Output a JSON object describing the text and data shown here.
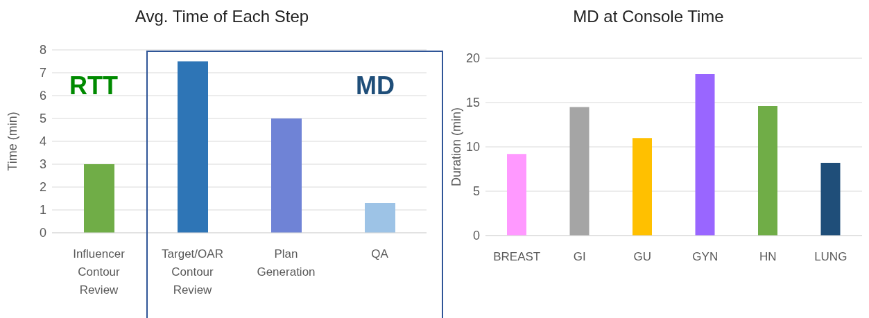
{
  "chart_data": [
    {
      "type": "bar",
      "title": "Avg. Time of Each Step",
      "ylabel": "Time (min)",
      "categories": [
        "Influencer Contour Review",
        "Target/OAR Contour Review",
        "Plan Generation",
        "QA"
      ],
      "values": [
        3,
        7.5,
        5,
        1.3
      ],
      "colors": [
        "#70ad47",
        "#2e75b6",
        "#6f83d6",
        "#9dc3e6"
      ],
      "ylim": [
        0,
        8
      ],
      "yticks": [
        0,
        1,
        2,
        3,
        4,
        5,
        6,
        7,
        8
      ],
      "grid": "y",
      "annotations": [
        "RTT",
        "MD"
      ]
    },
    {
      "type": "bar",
      "title": "MD at Console Time",
      "ylabel": "Duration (min)",
      "categories": [
        "BREAST",
        "GI",
        "GU",
        "GYN",
        "HN",
        "LUNG"
      ],
      "values": [
        9.2,
        14.5,
        11,
        18.2,
        14.6,
        8.2
      ],
      "colors": [
        "#ff99ff",
        "#a5a5a5",
        "#ffc000",
        "#9966ff",
        "#70ad47",
        "#1f4e79"
      ],
      "ylim": [
        0,
        20
      ],
      "yticks": [
        0,
        5,
        10,
        15,
        20
      ],
      "grid": "y"
    }
  ]
}
